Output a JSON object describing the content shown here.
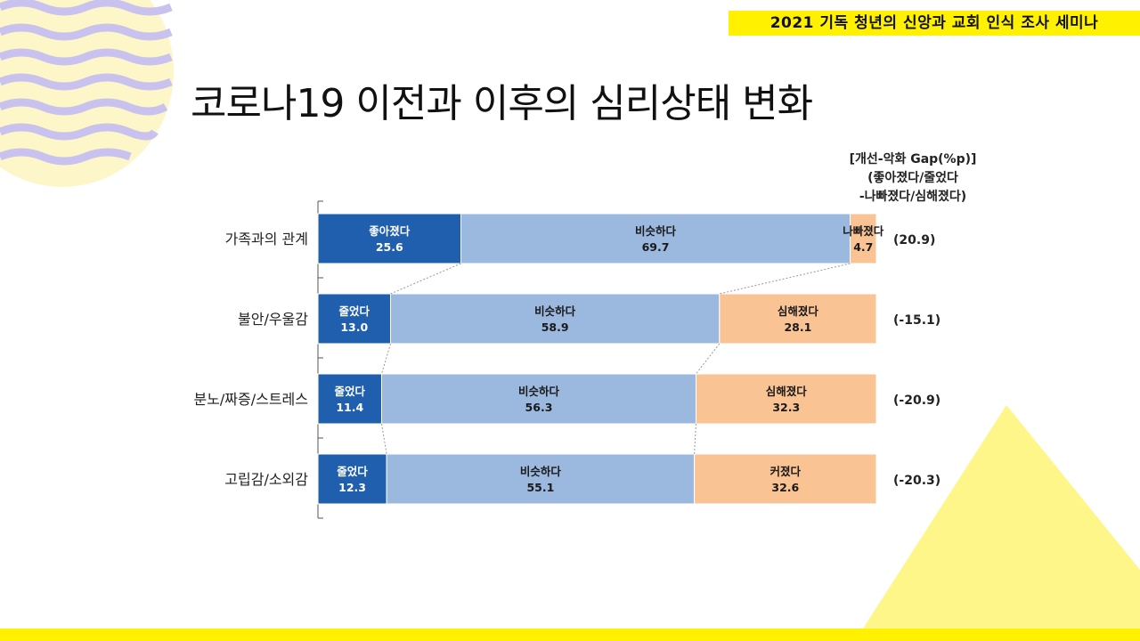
{
  "header": {
    "seminar_title": "2021 기독 청년의 신앙과 교회 인식 조사 세미나",
    "slide_title": "코로나19 이전과 이후의 심리상태 변화"
  },
  "gap_header": {
    "line1": "[개선-악화 Gap(%p)]",
    "line2": "(좋아졌다/줄었다",
    "line3": "-나빠졌다/심해졌다)"
  },
  "colors": {
    "positive": "#1f5fae",
    "neutral": "#9bb8df",
    "negative": "#f9c394",
    "accent": "#fff100"
  },
  "chart_data": {
    "type": "bar",
    "orientation": "horizontal",
    "stacked": true,
    "xlim": [
      0,
      100
    ],
    "unit": "%",
    "categories": [
      "가족과의 관계",
      "불안/우울감",
      "분노/짜증/스트레스",
      "고립감/소외감"
    ],
    "series": [
      {
        "name": "positive",
        "labels": [
          "좋아졌다",
          "줄었다",
          "줄었다",
          "줄었다"
        ],
        "values": [
          25.6,
          13.0,
          11.4,
          12.3
        ]
      },
      {
        "name": "neutral",
        "labels": [
          "비슷하다",
          "비슷하다",
          "비슷하다",
          "비슷하다"
        ],
        "values": [
          69.7,
          58.9,
          56.3,
          55.1
        ]
      },
      {
        "name": "negative",
        "labels": [
          "나빠졌다",
          "심해졌다",
          "심해졌다",
          "커졌다"
        ],
        "values": [
          4.7,
          28.1,
          32.3,
          32.6
        ]
      }
    ],
    "gaps": [
      "(20.9)",
      "(-15.1)",
      "(-20.9)",
      "(-20.3)"
    ]
  }
}
